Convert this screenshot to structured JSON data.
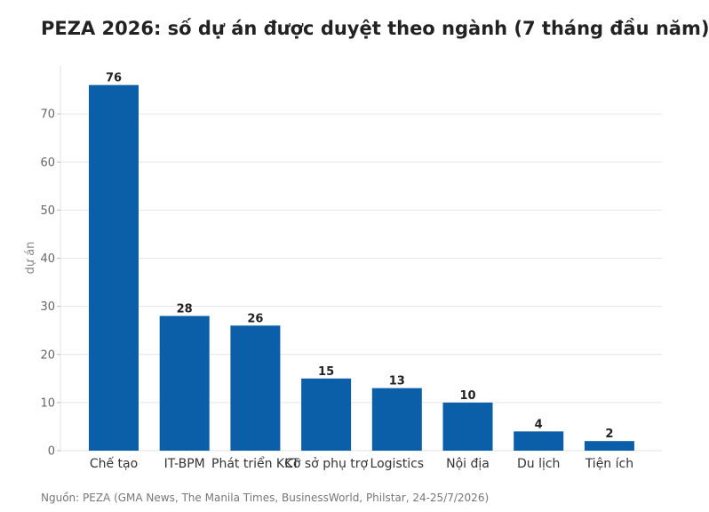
{
  "chart_data": {
    "type": "bar",
    "title": "PEZA 2026: số dự án được duyệt theo ngành (7 tháng đầu năm)",
    "ylabel": "dự án",
    "xlabel": "",
    "categories": [
      "Chế tạo",
      "IT-BPM",
      "Phát triển KKT",
      "Cơ sở phụ trợ",
      "Logistics",
      "Nội địa",
      "Du lịch",
      "Tiện ích"
    ],
    "values": [
      76,
      28,
      26,
      15,
      13,
      10,
      4,
      2
    ],
    "ylim": [
      0,
      80
    ],
    "yticks": [
      0,
      10,
      20,
      30,
      40,
      50,
      60,
      70
    ],
    "bar_color": "#0b5ea8",
    "grid": true,
    "legend": "none"
  },
  "source": "Nguồn: PEZA (GMA News, The Manila Times, BusinessWorld, Philstar, 24-25/7/2026)"
}
